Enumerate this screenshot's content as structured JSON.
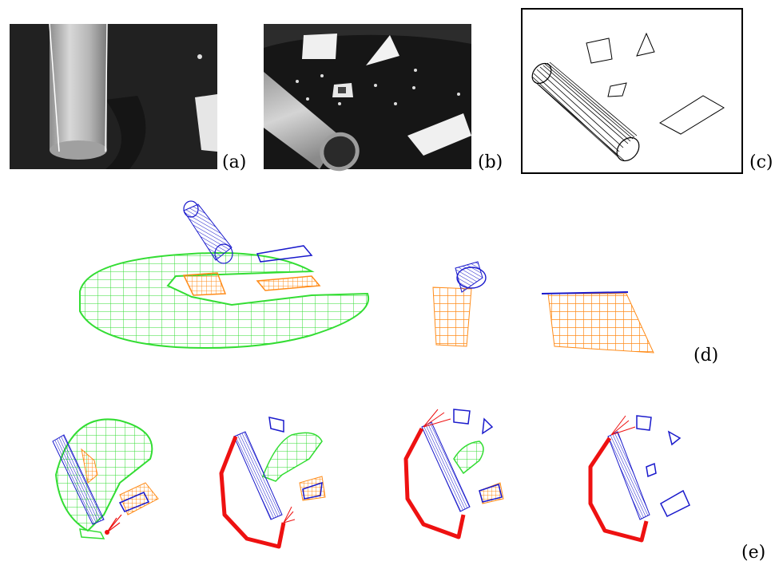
{
  "labels": {
    "a": "(a)",
    "b": "(b)",
    "c": "(c)",
    "d": "(d)",
    "e": "(e)"
  },
  "colors": {
    "ground_mesh": "#33dd33",
    "object_mesh": "#ff8c1a",
    "model_outline": "#1a1acc",
    "robot_path": "#ee1111",
    "photo_background": "#1a1a1a"
  }
}
